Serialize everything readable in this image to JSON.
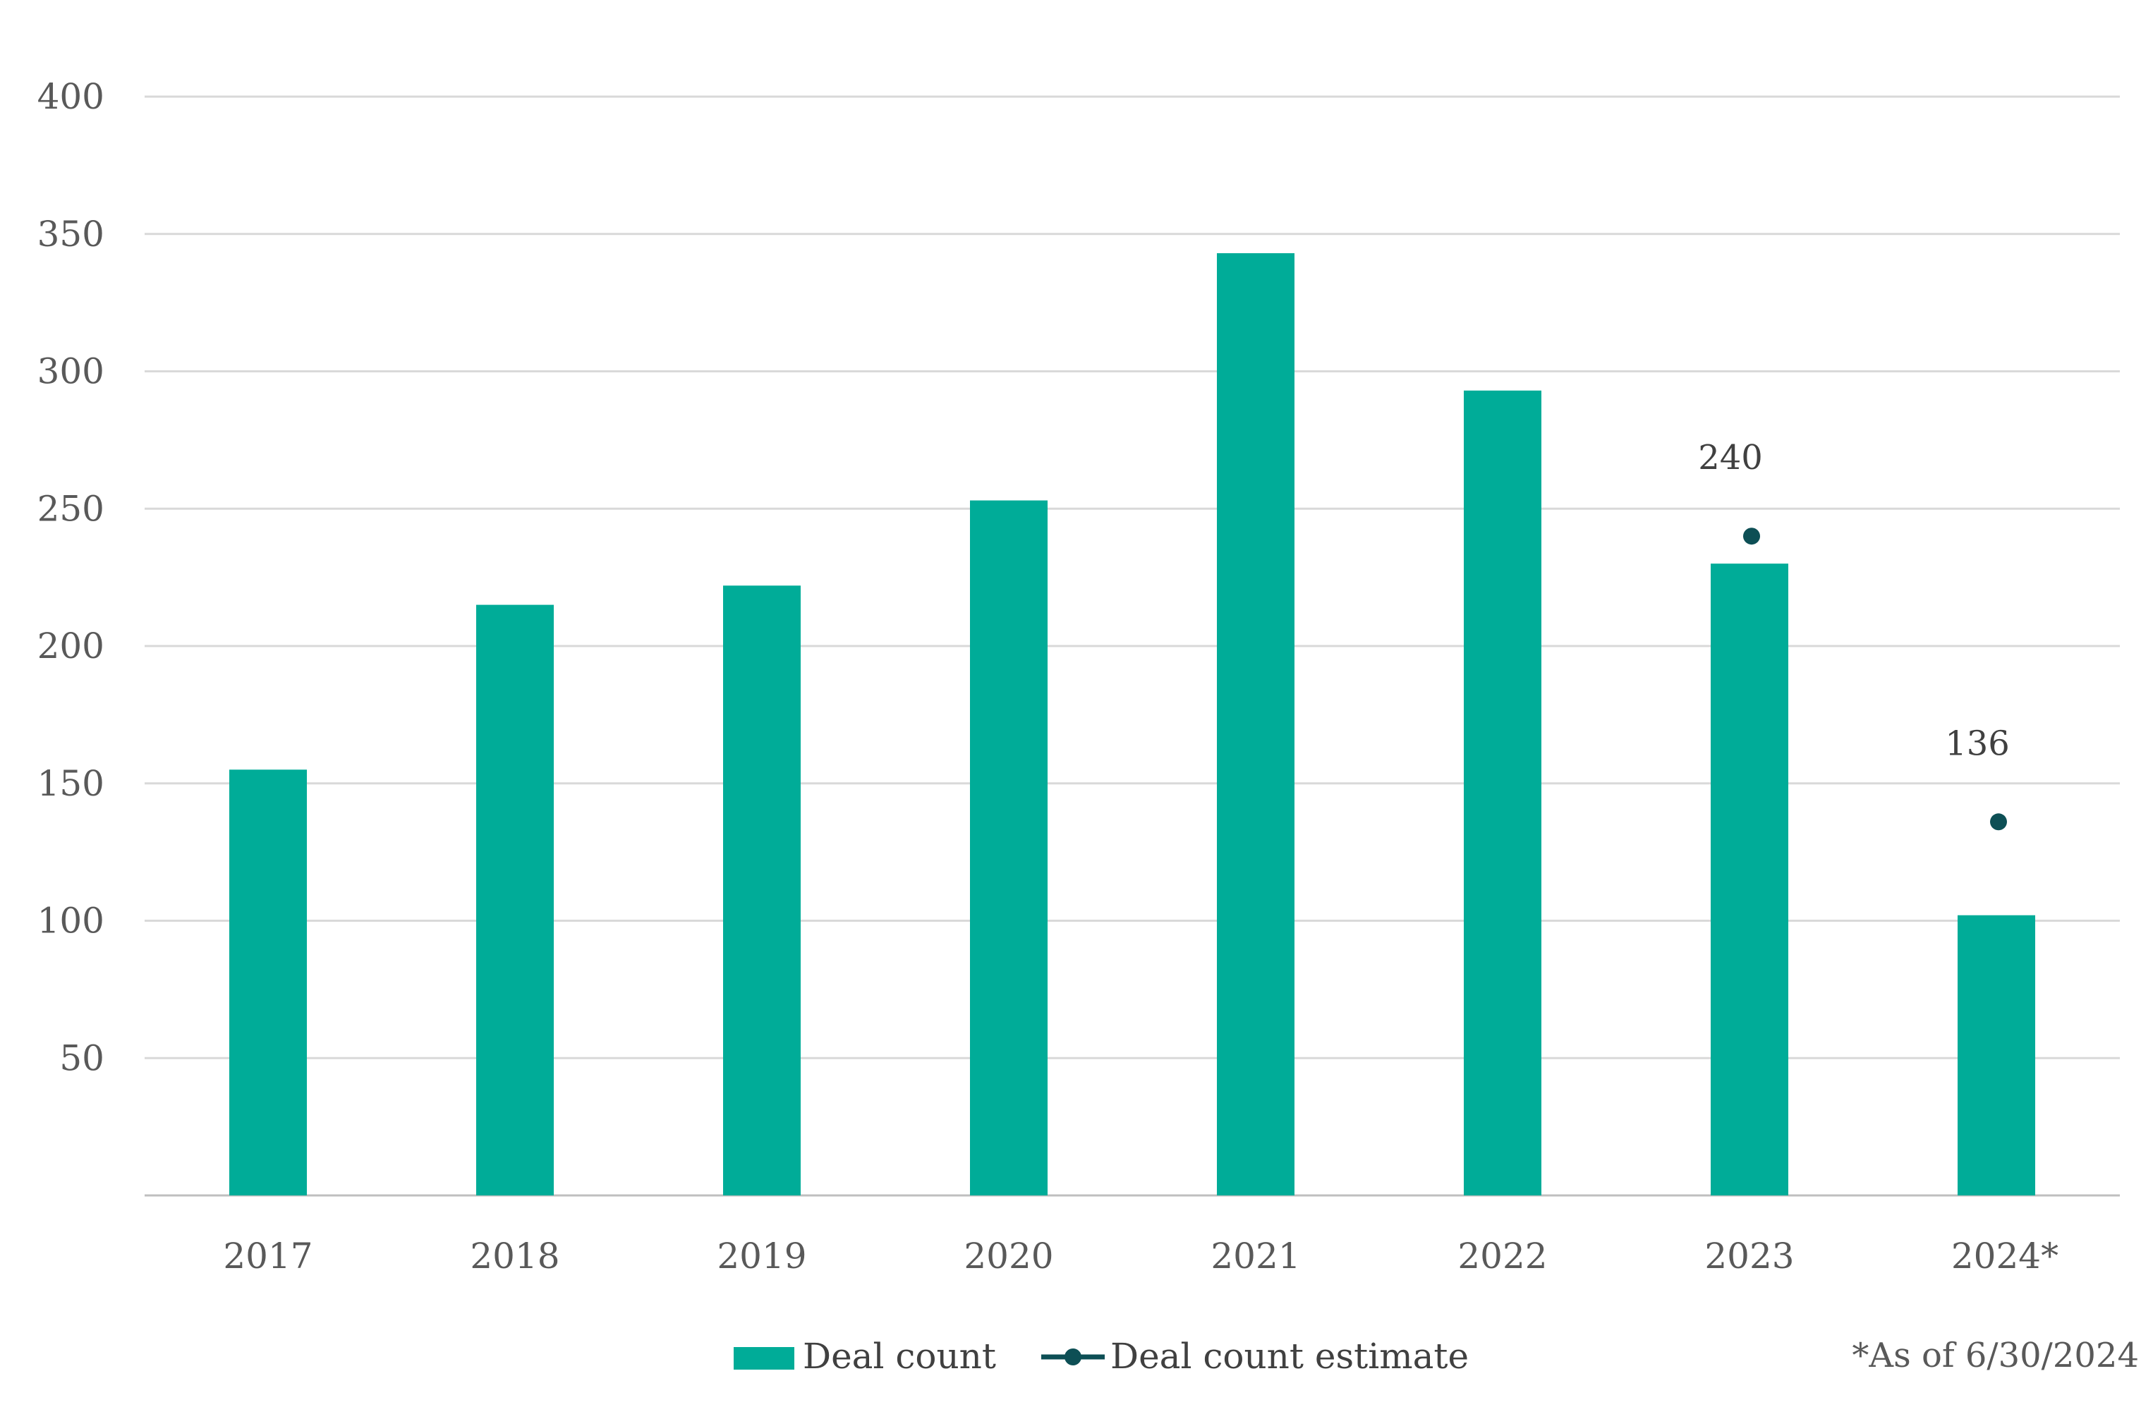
{
  "chart_data": {
    "type": "bar",
    "categories": [
      "2017",
      "2018",
      "2019",
      "2020",
      "2021",
      "2022",
      "2023",
      "2024*"
    ],
    "series": [
      {
        "name": "Deal count",
        "type": "bar",
        "values": [
          155,
          215,
          222,
          253,
          343,
          293,
          230,
          102
        ],
        "color": "#00AC98"
      },
      {
        "name": "Deal count estimate",
        "type": "scatter",
        "values": [
          null,
          null,
          null,
          null,
          null,
          null,
          240,
          136
        ],
        "labels": [
          null,
          null,
          null,
          null,
          null,
          null,
          "240",
          "136"
        ],
        "color": "#0D4F55"
      }
    ],
    "y_ticks": [
      "50",
      "100",
      "150",
      "200",
      "250",
      "300",
      "350",
      "400"
    ],
    "ylim": [
      0,
      400
    ],
    "grid": true,
    "legend_position": "bottom"
  },
  "footnote": "*As of 6/30/2024",
  "colors": {
    "bar": "#00AC98",
    "estimate": "#0D4F55",
    "grid": "#D9D9D9",
    "axis": "#BFBFBF"
  }
}
